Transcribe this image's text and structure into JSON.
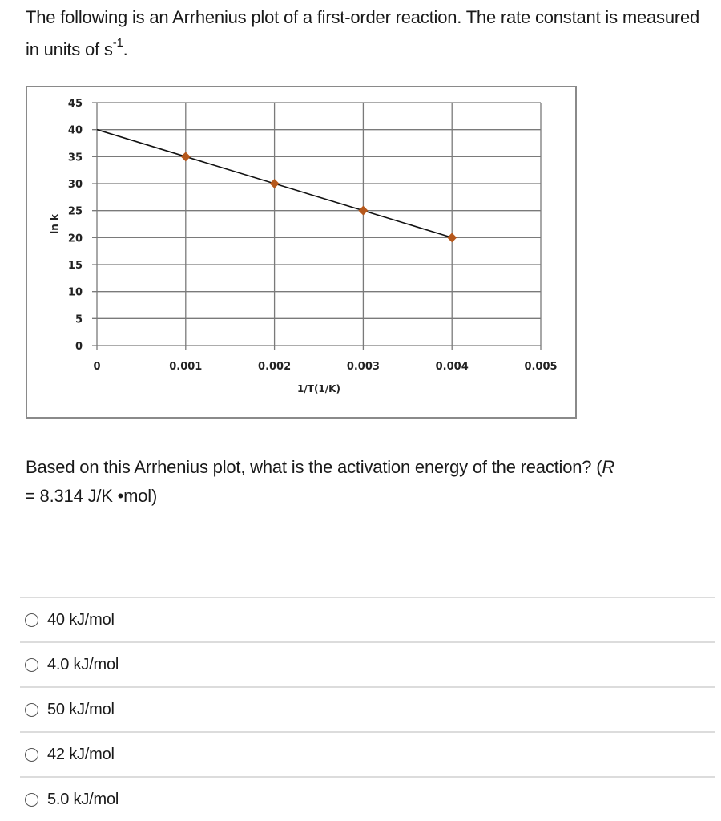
{
  "prompt": {
    "text_before_sup": "The following is an Arrhenius plot of a first-order reaction. The rate constant is measured in units of s",
    "superscript": "-1",
    "text_after_sup": "."
  },
  "question": {
    "text": "Based on this Arrhenius plot, what is the activation energy of the reaction? (",
    "r_symbol": "R",
    "r_value": " = 8.314 J/K •mol)"
  },
  "options": [
    {
      "label": "40 kJ/mol",
      "selected": false
    },
    {
      "label": "4.0 kJ/mol",
      "selected": false
    },
    {
      "label": "50 kJ/mol",
      "selected": false
    },
    {
      "label": "42 kJ/mol",
      "selected": false
    },
    {
      "label": "5.0 kJ/mol",
      "selected": false
    }
  ],
  "colors": {
    "marker": "#b5581c",
    "line": "#111111",
    "grid": "#7a7a7a",
    "frame": "#8a8a8a"
  },
  "chart_data": {
    "type": "line",
    "title": "",
    "xlabel": "1/T(1/K)",
    "ylabel": "ln k",
    "x_ticks": [
      "0",
      "0.001",
      "0.002",
      "0.003",
      "0.004",
      "0.005"
    ],
    "y_ticks": [
      "0",
      "5",
      "10",
      "15",
      "20",
      "25",
      "30",
      "35",
      "40",
      "45"
    ],
    "xlim": [
      0,
      0.005
    ],
    "ylim": [
      0,
      45
    ],
    "grid": true,
    "legend": null,
    "series": [
      {
        "name": "data points",
        "marker": "diamond",
        "x": [
          0.001,
          0.002,
          0.003,
          0.004
        ],
        "y": [
          35,
          30,
          25,
          20
        ]
      },
      {
        "name": "trendline",
        "marker": "none",
        "x": [
          0,
          0.004
        ],
        "y": [
          40,
          20
        ]
      }
    ]
  }
}
